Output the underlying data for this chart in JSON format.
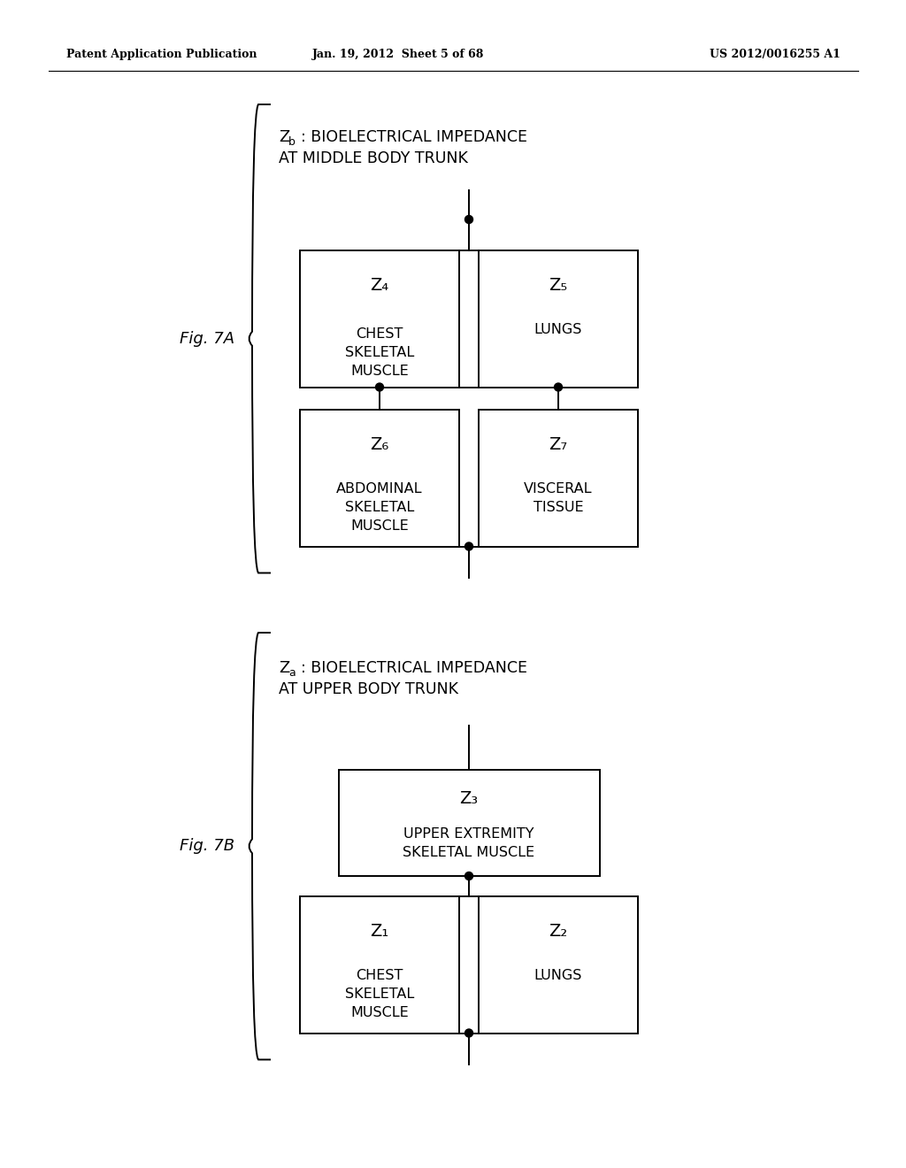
{
  "bg_color": "#ffffff",
  "header_left": "Patent Application Publication",
  "header_mid": "Jan. 19, 2012  Sheet 5 of 68",
  "header_right": "US 2012/0016255 A1",
  "fig7a": {
    "label": "Fig. 7A",
    "title_z": "Z",
    "title_sub": "b",
    "title_line1_rest": ": BIOELECTRICAL IMPEDANCE",
    "title_line2": "AT MIDDLE BODY TRUNK",
    "z4_label": "Z₄",
    "z4_text": "CHEST\nSKELETAL\nMUSCLE",
    "z5_label": "Z₅",
    "z5_text": "LUNGS",
    "z6_label": "Z₆",
    "z6_text": "ABDOMINAL\nSKELETAL\nMUSCLE",
    "z7_label": "Z₇",
    "z7_text": "VISCERAL\nTISSUE"
  },
  "fig7b": {
    "label": "Fig. 7B",
    "title_z": "Z",
    "title_sub": "a",
    "title_line1_rest": ": BIOELECTRICAL IMPEDANCE",
    "title_line2": "AT UPPER BODY TRUNK",
    "z3_label": "Z₃",
    "z3_text": "UPPER EXTREMITY\nSKELETAL MUSCLE",
    "z1_label": "Z₁",
    "z1_text": "CHEST\nSKELETAL\nMUSCLE",
    "z2_label": "Z₂",
    "z2_text": "LUNGS"
  }
}
